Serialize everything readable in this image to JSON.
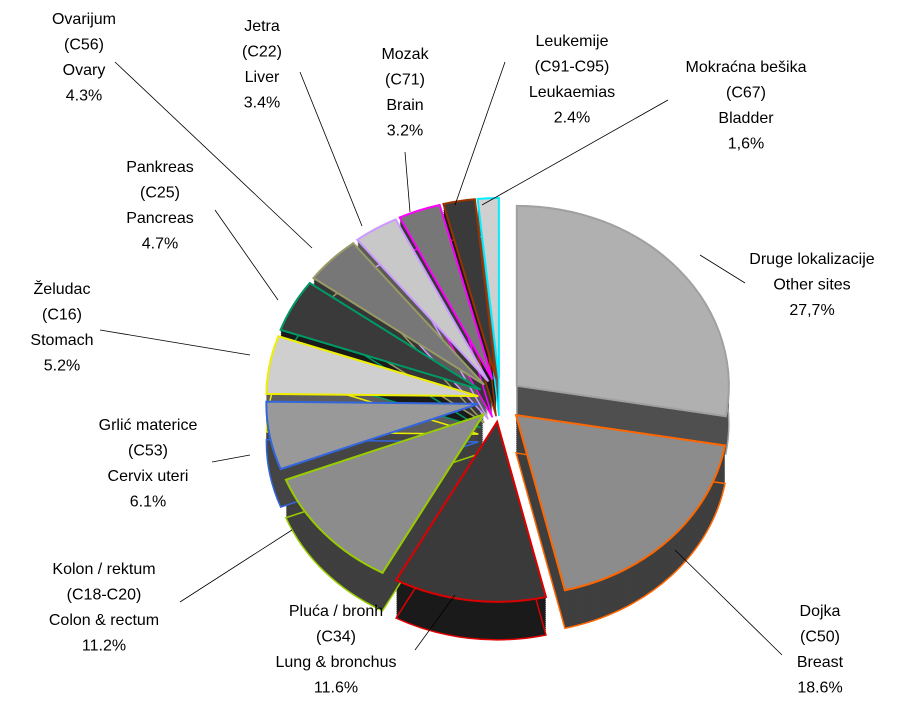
{
  "chart_data": {
    "type": "pie",
    "categories": [
      [
        "Druge lokalizacije",
        "Other sites"
      ],
      [
        "Dojka",
        "(C50)",
        "Breast"
      ],
      [
        "Pluća / bronh",
        "(C34)",
        "Lung & bronchus"
      ],
      [
        "Kolon / rektum",
        "(C18-C20)",
        "Colon & rectum"
      ],
      [
        "Grlić materice",
        "(C53)",
        "Cervix uteri"
      ],
      [
        "Želudac",
        "(C16)",
        "Stomach"
      ],
      [
        "Pankreas",
        "(C25)",
        "Pancreas"
      ],
      [
        "Ovarijum",
        "(C56)",
        "Ovary"
      ],
      [
        "Jetra",
        "(C22)",
        "Liver"
      ],
      [
        "Mozak",
        "(C71)",
        "Brain"
      ],
      [
        "Leukemije",
        "(C91-C95)",
        "Leukaemias"
      ],
      [
        "Mokraćna bešika",
        "(C67)",
        "Bladder"
      ]
    ],
    "values": [
      27.7,
      18.6,
      11.6,
      11.2,
      6.1,
      5.2,
      4.7,
      4.3,
      3.4,
      3.2,
      2.4,
      1.6
    ],
    "value_labels": [
      "27,7%",
      "18.6%",
      "11.6%",
      "11.2%",
      "6.1%",
      "5.2%",
      "4.7%",
      "4.3%",
      "3.4%",
      "3.2%",
      "2.4%",
      "1,6%"
    ],
    "fills": [
      "#b0b0b0",
      "#8c8c8c",
      "#3a3a3a",
      "#8c8c8c",
      "#999999",
      "#cfcfcf",
      "#3a3a3a",
      "#777777",
      "#c8c8c8",
      "#777777",
      "#3a3a3a",
      "#d0d0d0"
    ],
    "colors": [
      "#a0a0a0",
      "#ff6600",
      "#dd0000",
      "#99cc00",
      "#3366dd",
      "#eeee00",
      "#009966",
      "#999966",
      "#cc99ff",
      "#ff00ff",
      "#993300",
      "#00eeff"
    ]
  }
}
